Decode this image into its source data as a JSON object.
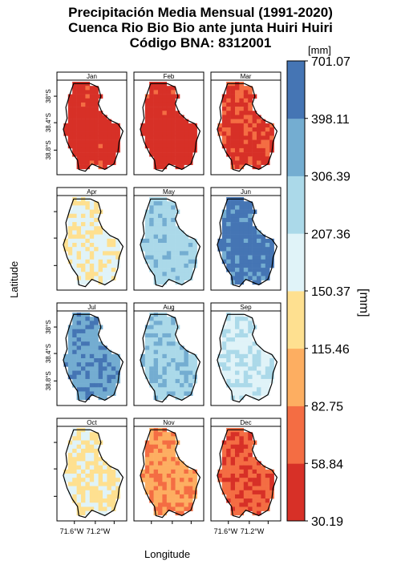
{
  "figure": {
    "title_line1": "Precipitación Media Mensual (1991-2020)",
    "title_line2": "Cuenca Rio Bio Bio ante junta Huiri Huiri",
    "title_line3": "Código BNA: 8312001",
    "xlabel": "Longitude",
    "ylabel": "Latitude"
  },
  "colorbar": {
    "unit_top": "[mm]",
    "unit_side": "[mm]",
    "breaks": [
      "30.19",
      "58.84",
      "82.75",
      "115.46",
      "150.37",
      "207.36",
      "306.39",
      "398.11",
      "701.07"
    ],
    "colors": [
      "#d73027",
      "#f46d43",
      "#fdae61",
      "#fee090",
      "#e0f3f8",
      "#abd9e9",
      "#74add1",
      "#4575b4"
    ]
  },
  "chart_data": {
    "type": "heatmap",
    "title": "Precipitación Media Mensual (1991-2020) Cuenca Rio Bio Bio ante junta Huiri Huiri Código BNA: 8312001",
    "xlabel": "Longitude",
    "ylabel": "Latitude",
    "units": "mm",
    "panels": [
      {
        "month": "Jan",
        "dominant_class": 0,
        "secondary_class": 1,
        "mix": 0.05
      },
      {
        "month": "Feb",
        "dominant_class": 0,
        "secondary_class": 1,
        "mix": 0.03
      },
      {
        "month": "Mar",
        "dominant_class": 0,
        "secondary_class": 1,
        "mix": 0.35
      },
      {
        "month": "Apr",
        "dominant_class": 4,
        "secondary_class": 3,
        "mix": 0.35
      },
      {
        "month": "May",
        "dominant_class": 5,
        "secondary_class": 6,
        "mix": 0.2
      },
      {
        "month": "Jun",
        "dominant_class": 7,
        "secondary_class": 6,
        "mix": 0.2
      },
      {
        "month": "Jul",
        "dominant_class": 6,
        "secondary_class": 7,
        "mix": 0.35
      },
      {
        "month": "Aug",
        "dominant_class": 5,
        "secondary_class": 6,
        "mix": 0.35
      },
      {
        "month": "Sep",
        "dominant_class": 4,
        "secondary_class": 5,
        "mix": 0.35
      },
      {
        "month": "Oct",
        "dominant_class": 3,
        "secondary_class": 4,
        "mix": 0.35
      },
      {
        "month": "Nov",
        "dominant_class": 2,
        "secondary_class": 1,
        "mix": 0.4
      },
      {
        "month": "Dec",
        "dominant_class": 1,
        "secondary_class": 0,
        "mix": 0.35
      }
    ],
    "y_tick_labels": [
      "38°S",
      "38.4°S",
      "38.8°S"
    ],
    "x_tick_labels": [
      "71.6°W",
      "71.2°W"
    ],
    "legend_breaks": [
      30.19,
      58.84,
      82.75,
      115.46,
      150.37,
      207.36,
      306.39,
      398.11,
      701.07
    ]
  }
}
